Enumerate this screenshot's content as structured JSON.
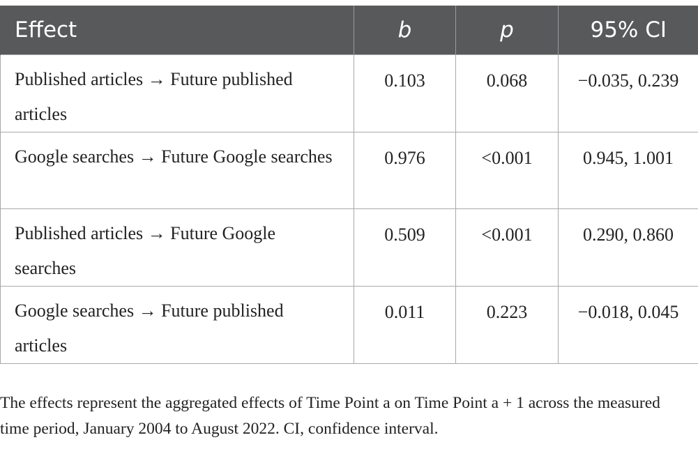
{
  "table": {
    "header": [
      "Effect",
      "b",
      "p",
      "95% CI"
    ],
    "rows": [
      [
        "Published articles → Future published articles",
        "0.103",
        "0.068",
        "−0.035, 0.239"
      ],
      [
        "Google searches → Future Google searches",
        "0.976",
        "<0.001",
        "0.945, 1.001"
      ],
      [
        "Published articles → Future Google searches",
        "0.509",
        "<0.001",
        "0.290, 0.860"
      ],
      [
        "Google searches → Future published articles",
        "0.011",
        "0.223",
        "−0.018, 0.045"
      ]
    ]
  },
  "footnote": "The effects represent the aggregated effects of Time Point a on Time Point a + 1 across the measured time period, January 2004 to August 2022. CI, confidence interval."
}
